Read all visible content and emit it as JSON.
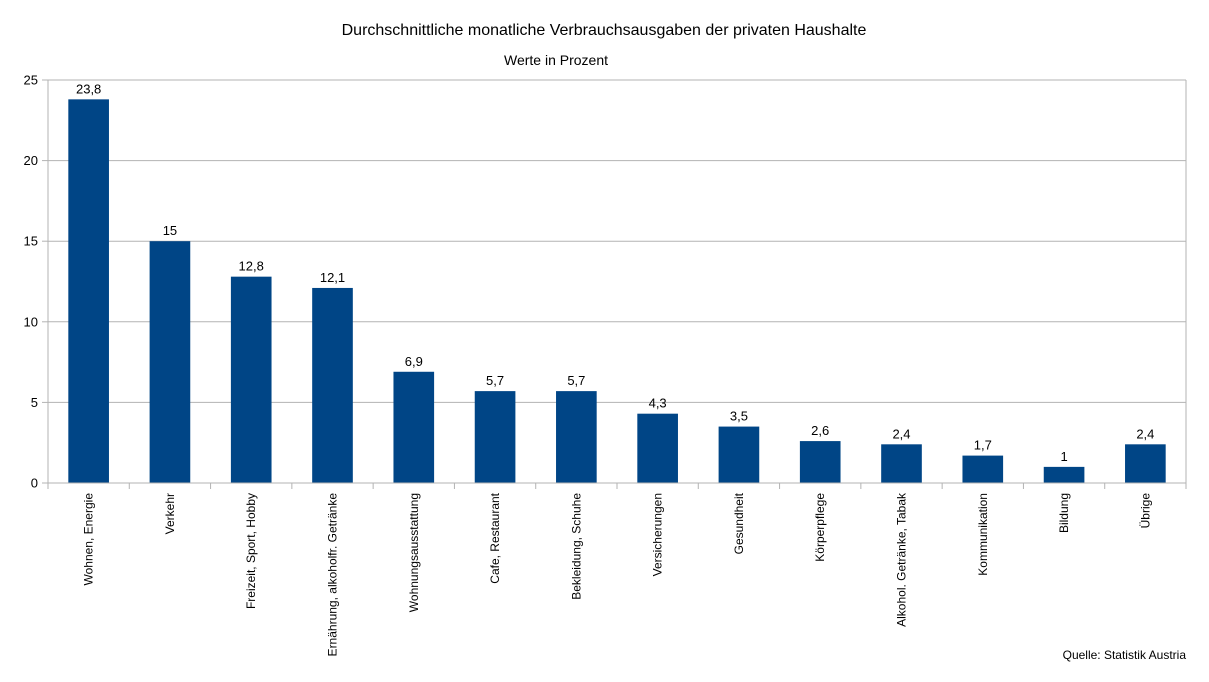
{
  "chart_data": {
    "type": "bar",
    "title": "Durchschnittliche monatliche Verbrauchsausgaben der privaten Haushalte",
    "subtitle": "Werte in Prozent",
    "source": "Quelle: Statistik Austria",
    "categories": [
      "Wohnen, Energie",
      "Verkehr",
      "Freizeit, Sport, Hobby",
      "Ernährung, alkoholfr. Getränke",
      "Wohnungsausstattung",
      "Cafe, Restaurant",
      "Bekleidung, Schuhe",
      "Versicherungen",
      "Gesundheit",
      "Körperpflege",
      "Alkohol. Getränke, Tabak",
      "Kommunikation",
      "Bildung",
      "Übrige"
    ],
    "values": [
      23.8,
      15,
      12.8,
      12.1,
      6.9,
      5.7,
      5.7,
      4.3,
      3.5,
      2.6,
      2.4,
      1.7,
      1,
      2.4
    ],
    "value_labels": [
      "23,8",
      "15",
      "12,8",
      "12,1",
      "6,9",
      "5,7",
      "5,7",
      "4,3",
      "3,5",
      "2,6",
      "2,4",
      "1,7",
      "1",
      "2,4"
    ],
    "yticks": [
      0,
      5,
      10,
      15,
      20,
      25
    ],
    "ylim": [
      0,
      25
    ],
    "grid": true,
    "legend": "none",
    "colors": {
      "bar": "#004586",
      "grid": "#b3b3b3",
      "axis": "#b3b3b3"
    }
  }
}
